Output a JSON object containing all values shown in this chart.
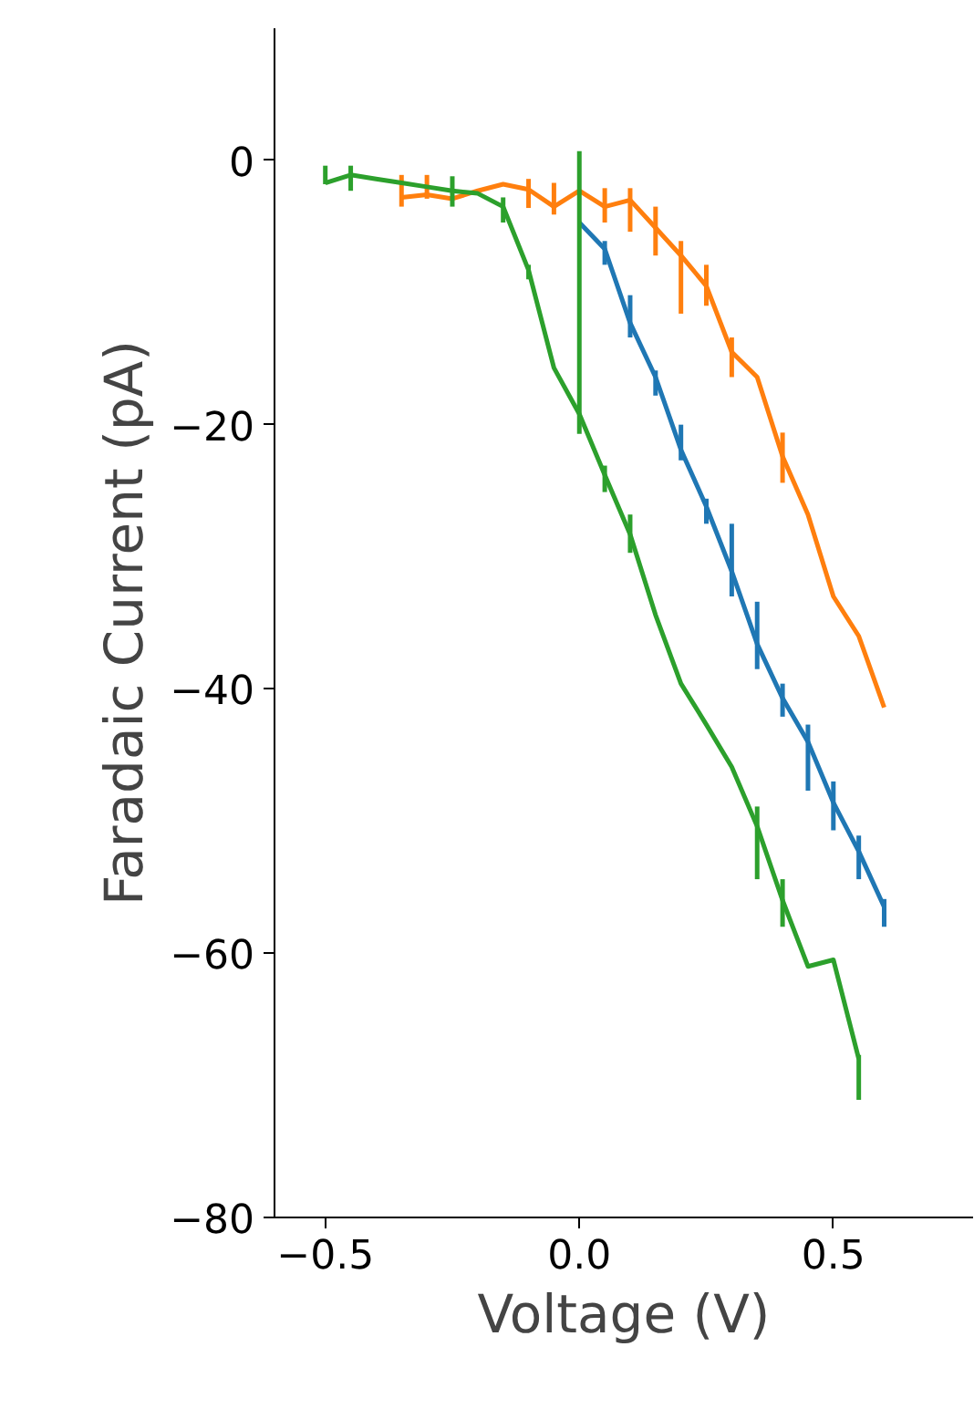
{
  "chart_data": {
    "type": "line",
    "xlabel": "Voltage (V)",
    "ylabel": "Faradaic Current (pA)",
    "xlim": [
      -0.6,
      0.775
    ],
    "ylim": [
      -80,
      10
    ],
    "xticks": [
      {
        "value": -0.5,
        "label": "−0.5"
      },
      {
        "value": 0.0,
        "label": "0.0"
      },
      {
        "value": 0.5,
        "label": "0.5"
      }
    ],
    "yticks": [
      {
        "value": -80,
        "label": "−80"
      },
      {
        "value": -60,
        "label": "−60"
      },
      {
        "value": -40,
        "label": "−40"
      },
      {
        "value": -20,
        "label": "−20"
      },
      {
        "value": 0,
        "label": "0"
      }
    ],
    "grid": false,
    "marker": "none",
    "line_style": "solid",
    "series": [
      {
        "color": "#1f77b4",
        "x": [
          0.0,
          0.05,
          0.1,
          0.15,
          0.2,
          0.25,
          0.3,
          0.35,
          0.4,
          0.45,
          0.5,
          0.55,
          0.6
        ],
        "values": [
          -4.7,
          -6.7,
          -12.3,
          -16.4,
          -21.9,
          -26.2,
          -31.1,
          -36.6,
          -40.7,
          -44.0,
          -48.6,
          -52.3,
          -56.5
        ],
        "errors": [
          null,
          [
            -7.9,
            -6.1
          ],
          [
            -13.4,
            -10.2
          ],
          [
            -17.8,
            -15.9
          ],
          [
            -22.7,
            -20.0
          ],
          [
            -27.5,
            -25.6
          ],
          [
            -33.0,
            -27.5
          ],
          [
            -38.5,
            -33.4
          ],
          [
            -42.1,
            -39.6
          ],
          [
            -47.7,
            -42.7
          ],
          [
            -50.7,
            -47.0
          ],
          [
            -54.4,
            -51.1
          ],
          [
            -58.0,
            -55.9
          ]
        ]
      },
      {
        "color": "#ff7f0e",
        "x": [
          -0.35,
          -0.3,
          -0.25,
          -0.2,
          -0.15,
          -0.1,
          -0.05,
          0.0,
          0.05,
          0.1,
          0.15,
          0.2,
          0.25,
          0.3,
          0.35,
          0.4,
          0.45,
          0.5,
          0.55,
          0.6
        ],
        "values": [
          -2.8,
          -2.6,
          -2.9,
          -2.3,
          -1.8,
          -2.2,
          -3.5,
          -2.3,
          -3.5,
          -3.0,
          -5.1,
          -7.2,
          -9.5,
          -14.5,
          -16.4,
          -22.4,
          -26.8,
          -33.0,
          -36.0,
          -41.4
        ],
        "errors": [
          [
            -3.5,
            -1.1
          ],
          [
            -2.9,
            -1.1
          ],
          null,
          null,
          null,
          [
            -3.6,
            -1.4
          ],
          [
            -4.1,
            -1.7
          ],
          null,
          [
            -4.7,
            -2.1
          ],
          [
            -5.4,
            -2.1
          ],
          [
            -7.2,
            -3.5
          ],
          [
            -11.6,
            -6.1
          ],
          [
            -11.0,
            -7.9
          ],
          [
            -16.4,
            -13.4
          ],
          null,
          [
            -24.4,
            -20.6
          ],
          null,
          null,
          null,
          null
        ]
      },
      {
        "color": "#2ca02c",
        "x": [
          -0.5,
          -0.45,
          -0.4,
          -0.35,
          -0.3,
          -0.25,
          -0.2,
          -0.15,
          -0.1,
          -0.05,
          0.0,
          0.05,
          0.1,
          0.15,
          0.2,
          0.25,
          0.3,
          0.35,
          0.4,
          0.45,
          0.5,
          0.55
        ],
        "values": [
          -1.7,
          -1.1,
          -1.4,
          -1.7,
          -2.0,
          -2.3,
          -2.5,
          -3.5,
          -8.3,
          -15.7,
          -19.2,
          -23.8,
          -28.3,
          -34.4,
          -39.6,
          -42.7,
          -45.9,
          -50.4,
          -56.0,
          -61.0,
          -60.5,
          -68.0
        ],
        "errors": [
          [
            -1.8,
            -0.4
          ],
          [
            -2.3,
            -0.4
          ],
          null,
          null,
          null,
          [
            -3.5,
            -1.2
          ],
          null,
          [
            -4.7,
            -2.8
          ],
          [
            -9.0,
            -7.9
          ],
          null,
          [
            -20.7,
            0.7
          ],
          [
            -25.1,
            -23.1
          ],
          [
            -29.7,
            -26.8
          ],
          null,
          null,
          null,
          null,
          [
            -54.4,
            -48.9
          ],
          [
            -58.0,
            -54.4
          ],
          null,
          null,
          [
            -71.1,
            -67.7
          ]
        ]
      }
    ]
  }
}
